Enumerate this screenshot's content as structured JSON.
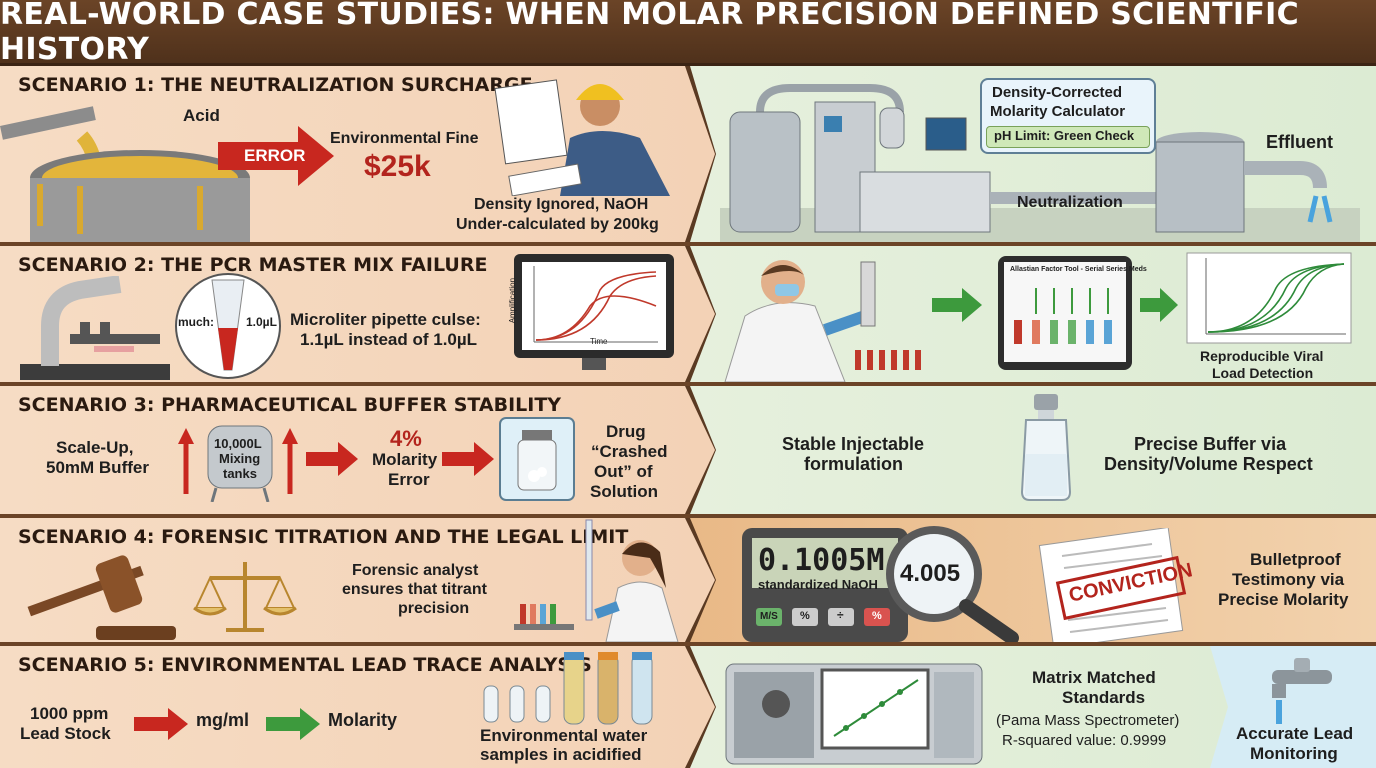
{
  "header": {
    "title": "REAL-WORLD CASE STUDIES: WHEN MOLAR PRECISION DEFINED SCIENTIFIC HISTORY"
  },
  "s1": {
    "title": "SCENARIO 1: THE NEUTRALIZATION SURCHARGE",
    "acid": "Acid",
    "error": "ERROR",
    "fine_label": "Environmental Fine",
    "fine_value": "$25k",
    "note_line1": "Density Ignored, NaOH",
    "note_line2": "Under-calculated by 200kg",
    "calc_line1": "Density-Corrected",
    "calc_line2": "Molarity Calculator",
    "ph": "pH Limit: Green Check",
    "neutralization": "Neutralization",
    "effluent": "Effluent"
  },
  "s2": {
    "title": "SCENARIO 2: THE PCR MASTER MIX FAILURE",
    "much": "much:",
    "vol": "1.0µL",
    "pipette_line1": "Microliter pipette culse:",
    "pipette_line2": "1.1µL instead of 1.0µL",
    "axis_y": "Amplification",
    "axis_x": "Time",
    "tablet_title": "Allastian Factor Tool - Serial Series Meds",
    "result_line1": "Reproducible Viral",
    "result_line2": "Load Detection"
  },
  "s3": {
    "title": "SCENARIO 3: PHARMACEUTICAL BUFFER STABILITY",
    "scale_line1": "Scale-Up,",
    "scale_line2": "50mM Buffer",
    "tank_line1": "10,000L",
    "tank_line2": "Mixing",
    "tank_line3": "tanks",
    "err_pct": "4%",
    "err_line1": "Molarity",
    "err_line2": "Error",
    "drug_line1": "Drug",
    "drug_line2": "“Crashed",
    "drug_line3": "Out” of",
    "drug_line4": "Solution",
    "stable_line1": "Stable Injectable",
    "stable_line2": "formulation",
    "buffer_line1": "Precise Buffer via",
    "buffer_line2": "Density/Volume Respect"
  },
  "s4": {
    "title": "SCENARIO 4: FORENSIC TITRATION AND THE LEGAL LIMIT",
    "analyst_line1": "Forensic analyst",
    "analyst_line2": "ensures that titrant",
    "analyst_line3": "precision",
    "display_value": "0.1005M",
    "display_sub": "standardized NaOH",
    "lens_value": "4.005",
    "keys": [
      "M/S",
      "%",
      "÷",
      "%"
    ],
    "stamp": "CONVICTION",
    "testimony_line1": "Bulletproof",
    "testimony_line2": "Testimony via",
    "testimony_line3": "Precise Molarity"
  },
  "s5": {
    "title": "SCENARIO 5: ENVIRONMENTAL LEAD TRACE ANALYSIS",
    "stock_line1": "1000 ppm",
    "stock_line2": "Lead Stock",
    "mgml": "mg/ml",
    "molarity": "Molarity",
    "water_line1": "Environmental water",
    "water_line2": "samples in acidified",
    "matrix_line1": "Matrix Matched",
    "matrix_line2": "Standards",
    "spectro": "(Pama Mass Spectrometer)",
    "rsq": "R-squared value: 0.9999",
    "lead_line1": "Accurate Lead",
    "lead_line2": "Monitoring"
  }
}
